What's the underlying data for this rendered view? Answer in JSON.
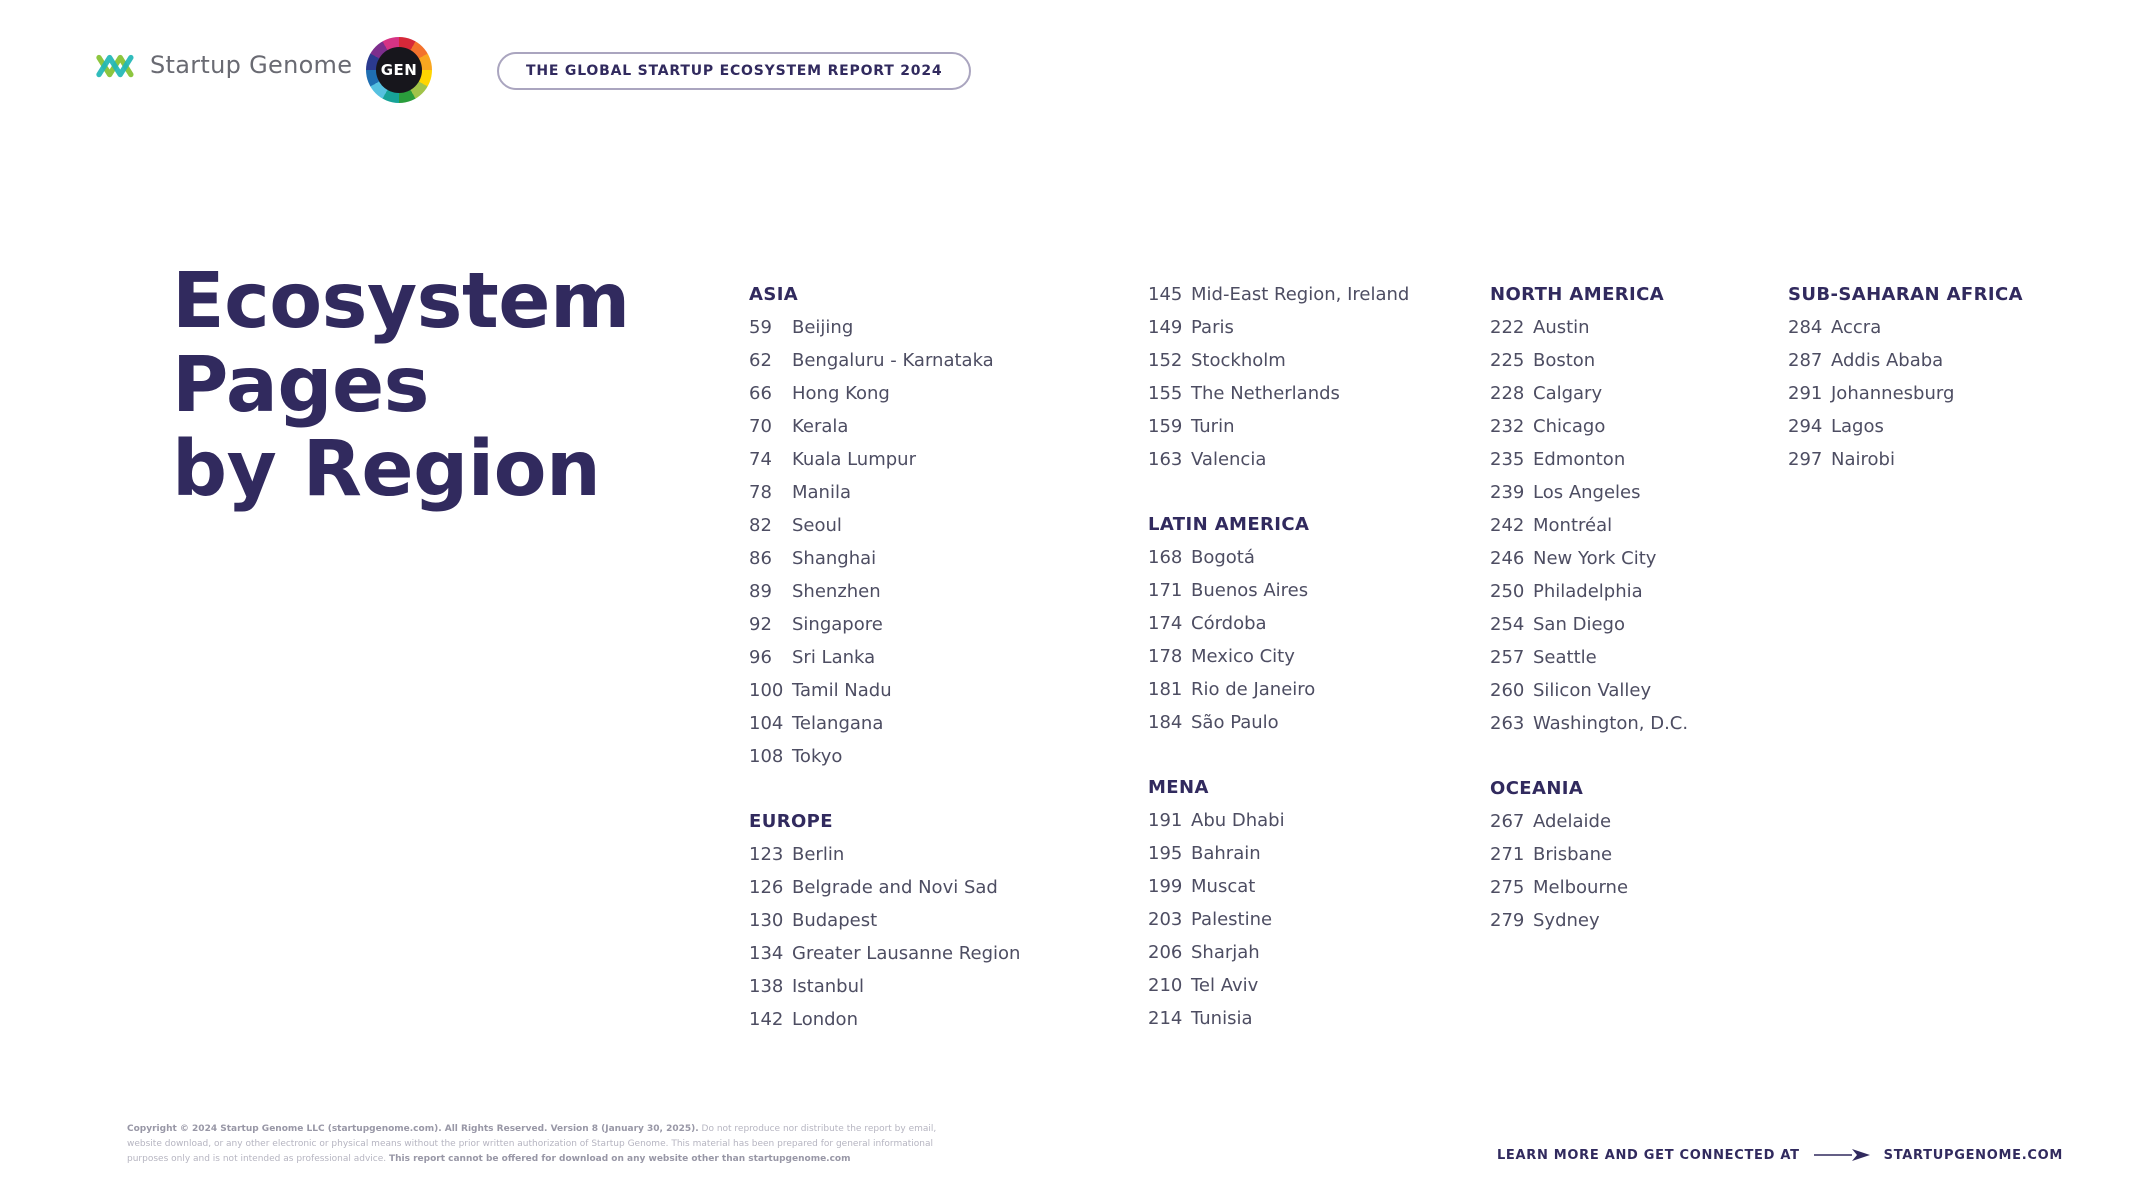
{
  "header": {
    "brand": "Startup Genome",
    "gen_logo": "GEN",
    "badge": "THE GLOBAL STARTUP ECOSYSTEM REPORT 2024"
  },
  "title": {
    "line1": "Ecosystem",
    "line2": "Pages",
    "line3": "by Region"
  },
  "colors": {
    "navy": "#312a5e",
    "item_text": "#4d4d62",
    "brand_gray": "#696a72",
    "logo_teal": "#1fb6b6",
    "logo_green": "#8dc63f",
    "badge_border": "#aaa5bf",
    "copyright_gray": "#b6b5c1"
  },
  "columns": [
    {
      "sections": [
        {
          "heading": "ASIA",
          "items": [
            {
              "page": "59",
              "name": "Beijing"
            },
            {
              "page": "62",
              "name": "Bengaluru - Karnataka"
            },
            {
              "page": "66",
              "name": "Hong Kong"
            },
            {
              "page": "70",
              "name": "Kerala"
            },
            {
              "page": "74",
              "name": "Kuala Lumpur"
            },
            {
              "page": "78",
              "name": "Manila"
            },
            {
              "page": "82",
              "name": "Seoul"
            },
            {
              "page": "86",
              "name": "Shanghai"
            },
            {
              "page": "89",
              "name": "Shenzhen"
            },
            {
              "page": "92",
              "name": "Singapore"
            },
            {
              "page": "96",
              "name": "Sri Lanka"
            },
            {
              "page": "100",
              "name": "Tamil Nadu"
            },
            {
              "page": "104",
              "name": "Telangana"
            },
            {
              "page": "108",
              "name": "Tokyo"
            }
          ]
        },
        {
          "heading": "EUROPE",
          "items": [
            {
              "page": "123",
              "name": "Berlin"
            },
            {
              "page": "126",
              "name": "Belgrade and Novi Sad"
            },
            {
              "page": "130",
              "name": "Budapest"
            },
            {
              "page": "134",
              "name": "Greater Lausanne Region"
            },
            {
              "page": "138",
              "name": "Istanbul"
            },
            {
              "page": "142",
              "name": "London"
            }
          ]
        }
      ]
    },
    {
      "sections": [
        {
          "heading": null,
          "items": [
            {
              "page": "145",
              "name": "Mid-East Region, Ireland"
            },
            {
              "page": "149",
              "name": "Paris"
            },
            {
              "page": "152",
              "name": "Stockholm"
            },
            {
              "page": "155",
              "name": "The Netherlands"
            },
            {
              "page": "159",
              "name": "Turin"
            },
            {
              "page": "163",
              "name": "Valencia"
            }
          ]
        },
        {
          "heading": "LATIN AMERICA",
          "items": [
            {
              "page": "168",
              "name": "Bogotá"
            },
            {
              "page": "171",
              "name": "Buenos Aires"
            },
            {
              "page": "174",
              "name": "Córdoba"
            },
            {
              "page": "178",
              "name": "Mexico City"
            },
            {
              "page": "181",
              "name": "Rio de Janeiro"
            },
            {
              "page": "184",
              "name": "São Paulo"
            }
          ]
        },
        {
          "heading": "MENA",
          "items": [
            {
              "page": "191",
              "name": "Abu Dhabi"
            },
            {
              "page": "195",
              "name": "Bahrain"
            },
            {
              "page": "199",
              "name": "Muscat"
            },
            {
              "page": "203",
              "name": "Palestine"
            },
            {
              "page": "206",
              "name": "Sharjah"
            },
            {
              "page": "210",
              "name": "Tel Aviv"
            },
            {
              "page": "214",
              "name": "Tunisia"
            }
          ]
        }
      ]
    },
    {
      "sections": [
        {
          "heading": "NORTH AMERICA",
          "items": [
            {
              "page": "222",
              "name": "Austin"
            },
            {
              "page": "225",
              "name": "Boston"
            },
            {
              "page": "228",
              "name": "Calgary"
            },
            {
              "page": "232",
              "name": "Chicago"
            },
            {
              "page": "235",
              "name": "Edmonton"
            },
            {
              "page": "239",
              "name": "Los Angeles"
            },
            {
              "page": "242",
              "name": "Montréal"
            },
            {
              "page": "246",
              "name": "New York City"
            },
            {
              "page": "250",
              "name": "Philadelphia"
            },
            {
              "page": "254",
              "name": "San Diego"
            },
            {
              "page": "257",
              "name": "Seattle"
            },
            {
              "page": "260",
              "name": "Silicon Valley"
            },
            {
              "page": "263",
              "name": "Washington, D.C."
            }
          ]
        },
        {
          "heading": "OCEANIA",
          "items": [
            {
              "page": "267",
              "name": "Adelaide"
            },
            {
              "page": "271",
              "name": "Brisbane"
            },
            {
              "page": "275",
              "name": "Melbourne"
            },
            {
              "page": "279",
              "name": "Sydney"
            }
          ]
        }
      ]
    },
    {
      "sections": [
        {
          "heading": "SUB-SAHARAN AFRICA",
          "items": [
            {
              "page": "284",
              "name": "Accra"
            },
            {
              "page": "287",
              "name": "Addis Ababa"
            },
            {
              "page": "291",
              "name": "Johannesburg"
            },
            {
              "page": "294",
              "name": "Lagos"
            },
            {
              "page": "297",
              "name": "Nairobi"
            }
          ]
        }
      ]
    }
  ],
  "footer": {
    "copyright_bold_1": "Copyright © 2024 Startup Genome LLC (startupgenome.com). All Rights Reserved. Version 8 (January 30, 2025).",
    "copyright_regular": " Do not reproduce nor distribute the report by email, website download, or any other electronic or physical means without the prior written authorization of Startup Genome. This material has been prepared for general informational purposes only and is not intended as professional advice. ",
    "copyright_bold_2": "This report cannot be offered for download on any website other than startupgenome.com",
    "learn_more": "LEARN MORE AND GET CONNECTED AT",
    "site": "STARTUPGENOME.COM"
  }
}
